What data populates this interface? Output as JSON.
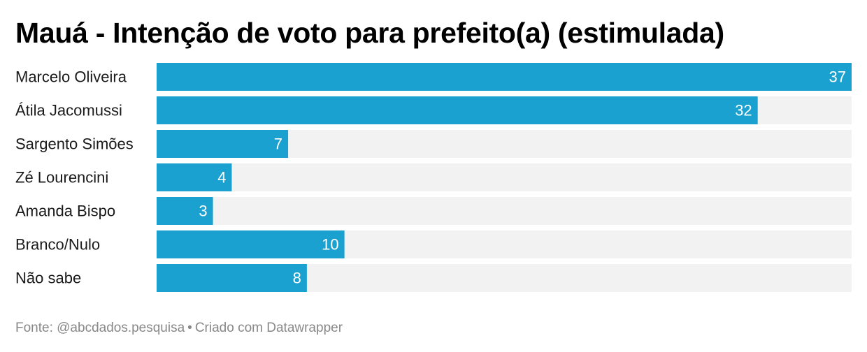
{
  "chart_data": {
    "type": "bar",
    "orientation": "horizontal",
    "title": "Mauá - Intenção de voto para prefeito(a) (estimulada)",
    "categories": [
      "Marcelo Oliveira",
      "Átila Jacomussi",
      "Sargento Simões",
      "Zé Lourencini",
      "Amanda Bispo",
      "Branco/Nulo",
      "Não sabe"
    ],
    "values": [
      37,
      32,
      7,
      4,
      3,
      10,
      8
    ],
    "xlim": [
      0,
      37
    ],
    "data_labels": true,
    "grid": false,
    "colors": {
      "bar": "#1ba1cf",
      "track": "#f2f2f2",
      "label_inside": "#ffffff",
      "category_text": "#1a1a1a"
    }
  },
  "footer": {
    "source": "Fonte: @abcdados.pesquisa",
    "separator": "•",
    "credit": "Criado com Datawrapper"
  }
}
